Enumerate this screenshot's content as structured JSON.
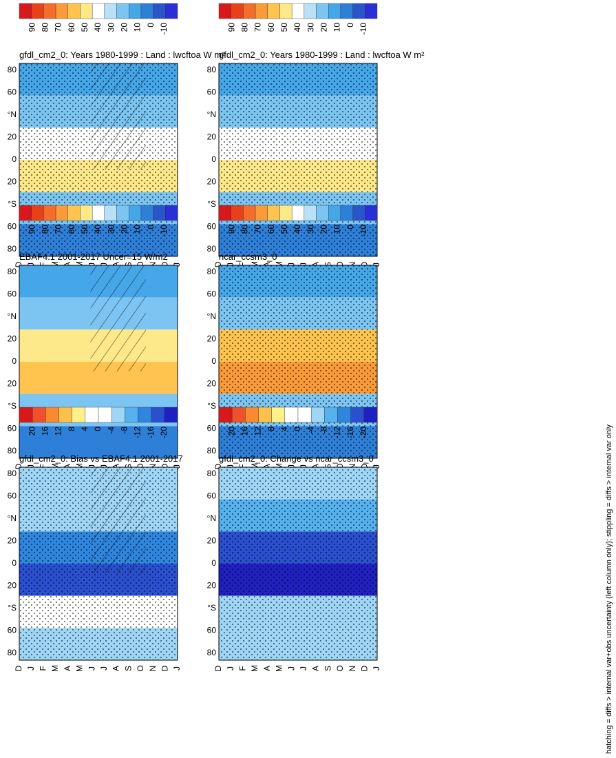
{
  "figure": {
    "footnote": "hatching = diffs > internal var+obs uncertainty (left column only); stippling = diffs > internal var only",
    "month_labels": [
      "D",
      "J",
      "F",
      "M",
      "A",
      "M",
      "J",
      "J",
      "A",
      "S",
      "O",
      "N",
      "D",
      "J"
    ],
    "lat_labels": [
      "80",
      "60",
      "°N",
      "20",
      "0",
      "20",
      "°S",
      "60",
      "80"
    ]
  },
  "chart_data": [
    {
      "type": "heatmap",
      "title": "gfdl_cm2_0: Years 1980-1999 : Land : lwcftoa W m²",
      "panel": "row1-left",
      "x": "month",
      "y": "latitude",
      "ylim": [
        -90,
        90
      ],
      "colorbar": [
        "90",
        "80",
        "70",
        "60",
        "50",
        "40",
        "30",
        "20",
        "10",
        "0",
        "-10"
      ],
      "field": [
        {
          "lat": 70,
          "value": 18
        },
        {
          "lat": 40,
          "value": 22
        },
        {
          "lat": 10,
          "value": 42
        },
        {
          "lat": -10,
          "value": 44
        },
        {
          "lat": -35,
          "value": 24
        },
        {
          "lat": -75,
          "value": 12
        }
      ],
      "hatching": true,
      "stippling": true
    },
    {
      "type": "heatmap",
      "title": "gfdl_cm2_0: Years 1980-1999 : Land : lwcftoa W m²",
      "panel": "row1-right",
      "x": "month",
      "y": "latitude",
      "ylim": [
        -90,
        90
      ],
      "colorbar": [
        "90",
        "80",
        "70",
        "60",
        "50",
        "40",
        "30",
        "20",
        "10",
        "0",
        "-10"
      ],
      "field": [
        {
          "lat": 70,
          "value": 18
        },
        {
          "lat": 40,
          "value": 22
        },
        {
          "lat": 10,
          "value": 40
        },
        {
          "lat": -10,
          "value": 45
        },
        {
          "lat": -35,
          "value": 24
        },
        {
          "lat": -75,
          "value": 12
        }
      ],
      "hatching": false,
      "stippling": true
    },
    {
      "type": "heatmap",
      "title": "EBAF4.1 2001-2017 Uncer=15 W/m2",
      "panel": "row2-left",
      "x": "month",
      "y": "latitude",
      "ylim": [
        -90,
        90
      ],
      "colorbar": [
        "90",
        "80",
        "70",
        "60",
        "50",
        "40",
        "30",
        "20",
        "10",
        "0",
        "-10"
      ],
      "field": [
        {
          "lat": 70,
          "value": 16
        },
        {
          "lat": 40,
          "value": 22
        },
        {
          "lat": 10,
          "value": 48
        },
        {
          "lat": -10,
          "value": 55
        },
        {
          "lat": -35,
          "value": 26
        },
        {
          "lat": -75,
          "value": 10
        }
      ],
      "hatching": true,
      "stippling": false
    },
    {
      "type": "heatmap",
      "title": "ncar_ccsm3_0",
      "panel": "row2-right",
      "x": "month",
      "y": "latitude",
      "ylim": [
        -90,
        90
      ],
      "colorbar": [
        "90",
        "80",
        "70",
        "60",
        "50",
        "40",
        "30",
        "20",
        "10",
        "0",
        "-10"
      ],
      "field": [
        {
          "lat": 70,
          "value": 18
        },
        {
          "lat": 40,
          "value": 24
        },
        {
          "lat": 10,
          "value": 52
        },
        {
          "lat": -10,
          "value": 60
        },
        {
          "lat": -35,
          "value": 28
        },
        {
          "lat": -75,
          "value": 12
        }
      ],
      "hatching": false,
      "stippling": true
    },
    {
      "type": "heatmap",
      "title": "gfdl_cm2_0: Bias vs EBAF4.1 2001-2017",
      "panel": "row3-left",
      "x": "month",
      "y": "latitude",
      "ylim": [
        -90,
        90
      ],
      "colorbar": [
        "20",
        "16",
        "12",
        "8",
        "4",
        "0",
        "-4",
        "-8",
        "-12",
        "-16",
        "-20"
      ],
      "field": [
        {
          "lat": 70,
          "value": -4
        },
        {
          "lat": 40,
          "value": -6
        },
        {
          "lat": 10,
          "value": -10
        },
        {
          "lat": -10,
          "value": -14
        },
        {
          "lat": -35,
          "value": 2
        },
        {
          "lat": -75,
          "value": -6
        }
      ],
      "hatching": true,
      "stippling": true
    },
    {
      "type": "heatmap",
      "title": "gfdl_cm2_0: Change vs ncar_ccsm3_0",
      "panel": "row3-right",
      "x": "month",
      "y": "latitude",
      "ylim": [
        -90,
        90
      ],
      "colorbar": [
        "20",
        "16",
        "12",
        "8",
        "4",
        "0",
        "-4",
        "-8",
        "-12",
        "-16",
        "-20"
      ],
      "field": [
        {
          "lat": 70,
          "value": -6
        },
        {
          "lat": 40,
          "value": -8
        },
        {
          "lat": 10,
          "value": -14
        },
        {
          "lat": -10,
          "value": -18
        },
        {
          "lat": -35,
          "value": -6
        },
        {
          "lat": -75,
          "value": -4
        }
      ],
      "hatching": false,
      "stippling": true
    }
  ],
  "colors": {
    "abs_scale": [
      "#d7191c",
      "#e8411a",
      "#f46d2a",
      "#fa9b3a",
      "#fec44f",
      "#fee98a",
      "#ffffff",
      "#b8e0f7",
      "#7cc5f2",
      "#45a6e8",
      "#2e7fd8",
      "#2a55c8",
      "#2b2fd8"
    ],
    "diff_scale": [
      "#d7191c",
      "#f0502a",
      "#f98a2f",
      "#fdc04a",
      "#fff08a",
      "#ffffff",
      "#ffffff",
      "#9fd6f5",
      "#55b2ee",
      "#2f86de",
      "#2a4fcf",
      "#1f20c0"
    ]
  }
}
